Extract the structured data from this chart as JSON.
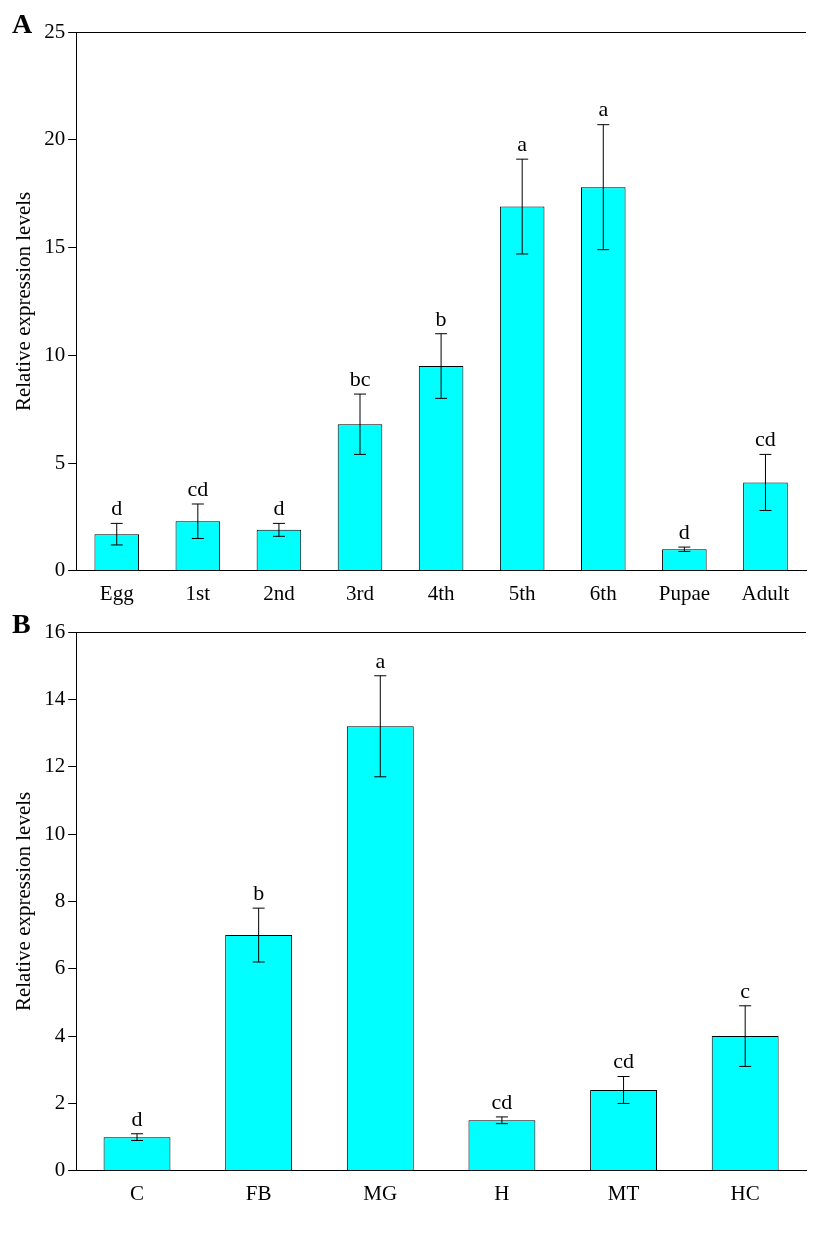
{
  "chart_data": [
    {
      "type": "bar",
      "title": "A",
      "ylabel": "Relative expression levels",
      "categories": [
        "Egg",
        "1st",
        "2nd",
        "3rd",
        "4th",
        "5th",
        "6th",
        "Pupae",
        "Adult"
      ],
      "values": [
        1.7,
        2.3,
        1.9,
        6.8,
        9.5,
        16.9,
        17.8,
        1.0,
        4.1
      ],
      "errors": [
        0.5,
        0.8,
        0.3,
        1.4,
        1.5,
        2.2,
        2.9,
        0.1,
        1.3
      ],
      "color": "#00ffff",
      "ylim": [
        0,
        25
      ],
      "yticks": [
        0,
        5,
        10,
        15,
        20,
        25
      ],
      "grid": false,
      "legend": false,
      "annotations": [
        {
          "text": "d",
          "x": "Egg",
          "y": 2.2
        },
        {
          "text": "cd",
          "x": "1st",
          "y": 3.1
        },
        {
          "text": "d",
          "x": "2nd",
          "y": 2.2
        },
        {
          "text": "bc",
          "x": "3rd",
          "y": 8.2
        },
        {
          "text": "b",
          "x": "4th",
          "y": 11.0
        },
        {
          "text": "a",
          "x": "5th",
          "y": 19.1
        },
        {
          "text": "a",
          "x": "6th",
          "y": 20.7
        },
        {
          "text": "d",
          "x": "Pupae",
          "y": 1.1
        },
        {
          "text": "cd",
          "x": "Adult",
          "y": 5.4
        }
      ]
    },
    {
      "type": "bar",
      "title": "B",
      "ylabel": "Relative expression levels",
      "categories": [
        "C",
        "FB",
        "MG",
        "H",
        "MT",
        "HC"
      ],
      "values": [
        1.0,
        7.0,
        13.2,
        1.5,
        2.4,
        4.0
      ],
      "errors": [
        0.1,
        0.8,
        1.5,
        0.1,
        0.4,
        0.9
      ],
      "color": "#00ffff",
      "ylim": [
        0,
        16
      ],
      "yticks": [
        0,
        2,
        4,
        6,
        8,
        10,
        12,
        14,
        16
      ],
      "grid": false,
      "legend": false,
      "annotations": [
        {
          "text": "d",
          "x": "C",
          "y": 1.1
        },
        {
          "text": "b",
          "x": "FB",
          "y": 7.8
        },
        {
          "text": "a",
          "x": "MG",
          "y": 14.7
        },
        {
          "text": "cd",
          "x": "H",
          "y": 1.6
        },
        {
          "text": "cd",
          "x": "MT",
          "y": 2.8
        },
        {
          "text": "c",
          "x": "HC",
          "y": 4.9
        }
      ]
    }
  ]
}
